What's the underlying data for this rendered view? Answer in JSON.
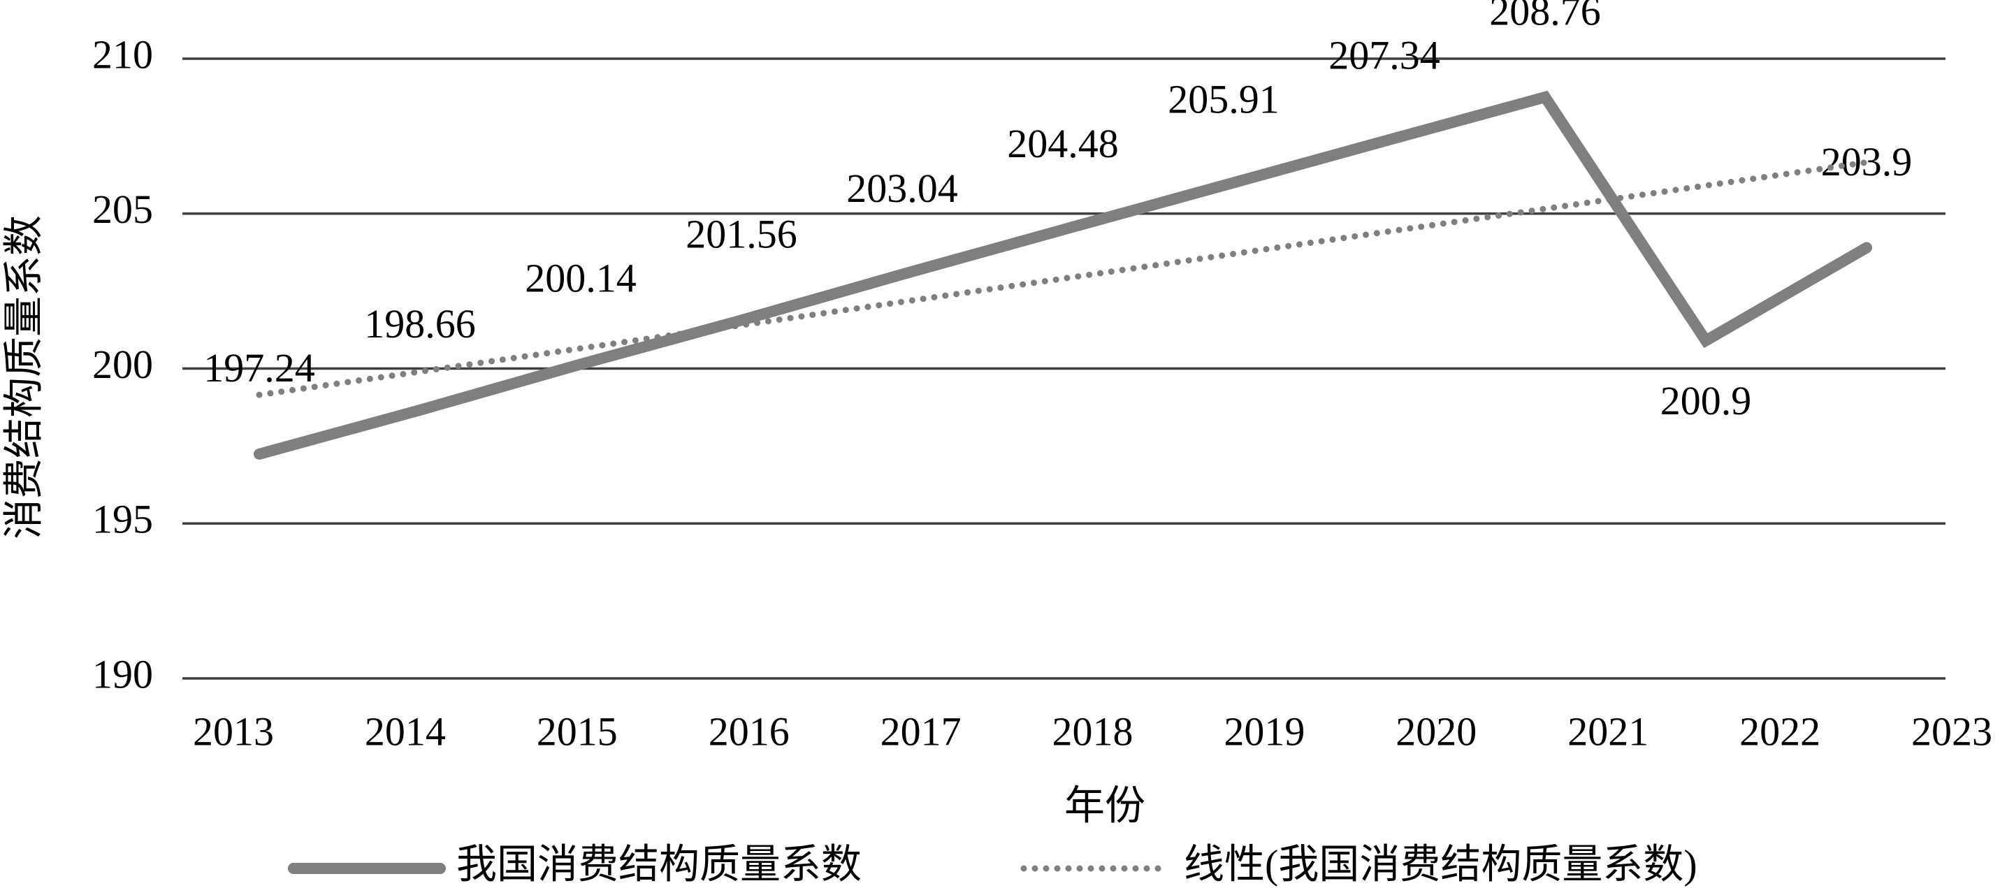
{
  "chart_data": {
    "type": "line",
    "categories": [
      "2013",
      "2014",
      "2015",
      "2016",
      "2017",
      "2018",
      "2019",
      "2020",
      "2021",
      "2022",
      "2023"
    ],
    "series": [
      {
        "name": "我国消费结构质量系数",
        "color": "#7f7f7f",
        "values": [
          197.24,
          198.66,
          200.14,
          201.56,
          203.04,
          204.48,
          205.91,
          207.34,
          208.76,
          200.9,
          203.9
        ]
      }
    ],
    "trendline": {
      "name": "线性(我国消费结构质量系数)",
      "color": "#7f7f7f",
      "type": "linear"
    },
    "x_label": "年份",
    "y_label": "消费结构质量系数",
    "ylim": [
      190,
      210
    ],
    "yticks": [
      190,
      195,
      200,
      205,
      210
    ],
    "grid": true,
    "legend": "bottom"
  }
}
